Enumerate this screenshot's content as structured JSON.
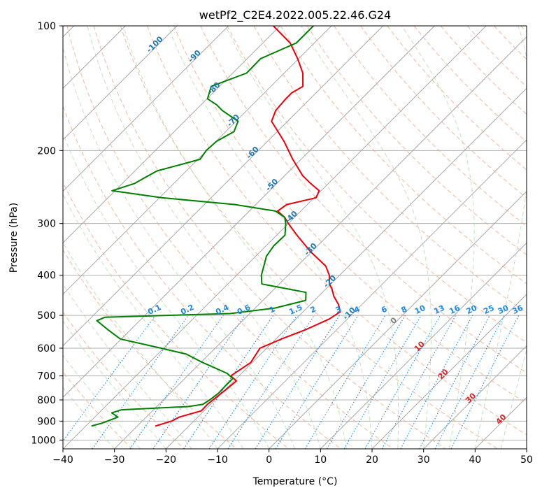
{
  "chart_data": {
    "type": "line",
    "diagram": "Skew-T log-P",
    "title": "wetPf2_C2E4.2022.005.22.46.G24",
    "xlabel": "Temperature (°C)",
    "ylabel": "Pressure (hPa)",
    "xlim": [
      -40,
      50
    ],
    "ylim": [
      1050,
      100
    ],
    "y_scale": "log",
    "x_ticks": [
      -40,
      -30,
      -20,
      -10,
      0,
      10,
      20,
      30,
      40,
      50
    ],
    "y_ticks": [
      100,
      200,
      300,
      400,
      500,
      600,
      700,
      800,
      900,
      1000
    ],
    "grid": true,
    "colors": {
      "temperature": "#e8000b",
      "dewpoint": "#008000",
      "isotherm": "#a0a0a0",
      "dry_adiabat": "#f4a582",
      "moist_adiabat": "#a6d8a0",
      "mixing_ratio": "#1e88e5",
      "isotherm_label": "#1f77b4",
      "positive_label": "#d62728"
    },
    "series": [
      {
        "name": "",
        "kind": "temperature",
        "p": [
          925,
          900,
          880,
          850,
          820,
          800,
          760,
          720,
          700,
          650,
          600,
          570,
          540,
          510,
          490,
          470,
          450,
          430,
          420,
          400,
          380,
          350,
          320,
          300,
          290,
          280,
          270,
          260,
          250,
          240,
          230,
          210,
          190,
          170,
          160,
          150,
          145,
          140,
          130,
          120,
          110,
          100
        ],
        "t": [
          -26.5,
          -24.3,
          -23.6,
          -20.5,
          -20.6,
          -20.4,
          -19.9,
          -19.5,
          -21.6,
          -20.3,
          -21.3,
          -18.9,
          -15.9,
          -13.5,
          -12.8,
          -14.6,
          -17.0,
          -19.0,
          -20.3,
          -22.0,
          -24.5,
          -30.4,
          -36.1,
          -40.0,
          -41.9,
          -44.5,
          -44.0,
          -39.6,
          -40.4,
          -43.5,
          -46.5,
          -51.6,
          -56.8,
          -63.1,
          -64.4,
          -64.7,
          -64.7,
          -63.8,
          -66.4,
          -70.2,
          -74.7,
          -81.3
        ]
      },
      {
        "name": "",
        "kind": "dewpoint",
        "p": [
          925,
          910,
          880,
          860,
          845,
          830,
          820,
          800,
          770,
          740,
          710,
          690,
          650,
          620,
          600,
          570,
          540,
          515,
          505,
          495,
          480,
          460,
          440,
          420,
          400,
          380,
          360,
          340,
          320,
          300,
          290,
          280,
          270,
          260,
          250,
          240,
          232,
          224,
          210,
          200,
          190,
          180,
          170,
          160,
          155,
          150,
          140,
          130,
          120,
          110,
          100
        ],
        "t": [
          -38.9,
          -37.4,
          -35.5,
          -37.5,
          -36.2,
          -23.9,
          -21.5,
          -21.0,
          -20.6,
          -20.7,
          -20.7,
          -22.8,
          -29.6,
          -34.5,
          -40.5,
          -50.2,
          -54.6,
          -58.3,
          -57.4,
          -33.8,
          -26.2,
          -21.7,
          -23.2,
          -33.4,
          -35.2,
          -36.5,
          -37.9,
          -38.5,
          -38.4,
          -40.5,
          -41.9,
          -44.9,
          -54.0,
          -69.6,
          -80.6,
          -77.6,
          -76.7,
          -75.7,
          -69.6,
          -70.1,
          -69.9,
          -68.4,
          -69.6,
          -74.8,
          -77.0,
          -79.9,
          -81.6,
          -77.3,
          -77.4,
          -73.5,
          -73.5
        ]
      }
    ],
    "isotherm_labels": [
      {
        "value": -100,
        "text": "-100"
      },
      {
        "value": -90,
        "text": "-90"
      },
      {
        "value": -80,
        "text": "-80"
      },
      {
        "value": -70,
        "text": "-70"
      },
      {
        "value": -60,
        "text": "-60"
      },
      {
        "value": -50,
        "text": "-50"
      },
      {
        "value": -40,
        "text": "-40"
      },
      {
        "value": -30,
        "text": "-30"
      },
      {
        "value": -20,
        "text": "-20"
      },
      {
        "value": -10,
        "text": "-10"
      },
      {
        "value": 0,
        "text": "0"
      },
      {
        "value": 10,
        "text": "10"
      },
      {
        "value": 20,
        "text": "20"
      },
      {
        "value": 30,
        "text": "30"
      },
      {
        "value": 40,
        "text": "40"
      }
    ],
    "mixing_ratio_lines": [
      {
        "value": 0.1,
        "text": "0.1"
      },
      {
        "value": 0.2,
        "text": "0.2"
      },
      {
        "value": 0.4,
        "text": "0.4"
      },
      {
        "value": 0.6,
        "text": "0.6"
      },
      {
        "value": 1,
        "text": "1"
      },
      {
        "value": 1.5,
        "text": "1.5"
      },
      {
        "value": 2,
        "text": "2"
      },
      {
        "value": 3,
        "text": "3"
      },
      {
        "value": 4,
        "text": "4"
      },
      {
        "value": 6,
        "text": "6"
      },
      {
        "value": 8,
        "text": "8"
      },
      {
        "value": 10,
        "text": "10"
      },
      {
        "value": 13,
        "text": "13"
      },
      {
        "value": 16,
        "text": "16"
      },
      {
        "value": 20,
        "text": "20"
      },
      {
        "value": 25,
        "text": "25"
      },
      {
        "value": 30,
        "text": "30"
      },
      {
        "value": 36,
        "text": "36"
      }
    ]
  }
}
